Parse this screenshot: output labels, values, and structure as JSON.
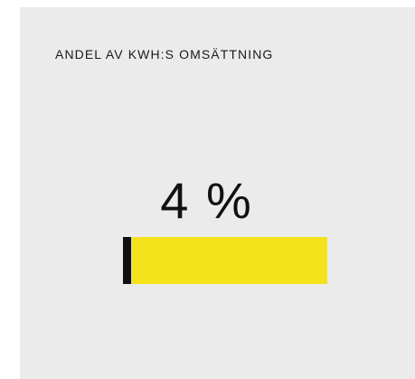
{
  "card": {
    "title": "ANDEL AV KWH:S OMSÄTTNING",
    "value_label": "4 %",
    "progress": {
      "fraction": 0.04,
      "bar_color": "#f4e31a",
      "fill_color": "#111111"
    }
  },
  "colors": {
    "card_background": "#ebebeb",
    "text": "#1a1a1a"
  }
}
